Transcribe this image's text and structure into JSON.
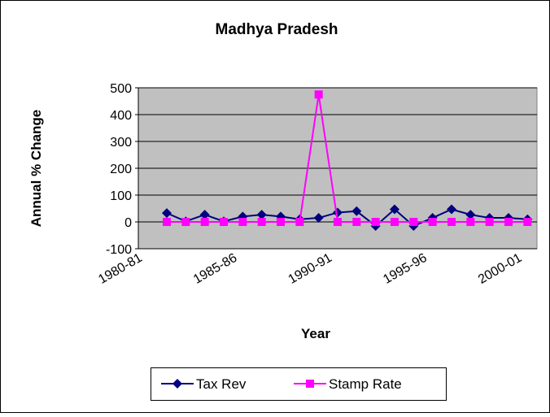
{
  "chart_data": {
    "type": "line",
    "title": "Madhya Pradesh",
    "x_label": "Year",
    "y_label": "Annual % Change",
    "categories": [
      "1980-81",
      null,
      null,
      null,
      null,
      "1985-86",
      null,
      null,
      null,
      null,
      "1990-91",
      null,
      null,
      null,
      null,
      "1995-96",
      null,
      null,
      null,
      null,
      "2000-01"
    ],
    "series": [
      {
        "name": "Tax Rev",
        "color": "#000080",
        "marker": "diamond",
        "values": [
          null,
          33,
          2,
          27,
          2,
          20,
          27,
          20,
          10,
          15,
          35,
          40,
          -15,
          47,
          -15,
          15,
          47,
          27,
          15,
          15,
          10
        ]
      },
      {
        "name": "Stamp Rate",
        "color": "#ff00ff",
        "marker": "square",
        "values": [
          null,
          0,
          0,
          0,
          0,
          0,
          0,
          0,
          0,
          475,
          0,
          0,
          0,
          0,
          0,
          0,
          0,
          0,
          0,
          0,
          0
        ]
      }
    ],
    "ylim": [
      -100,
      500
    ],
    "yticks": [
      -100,
      0,
      100,
      200,
      300,
      400,
      500
    ],
    "grid": true,
    "legend": "bottom"
  }
}
